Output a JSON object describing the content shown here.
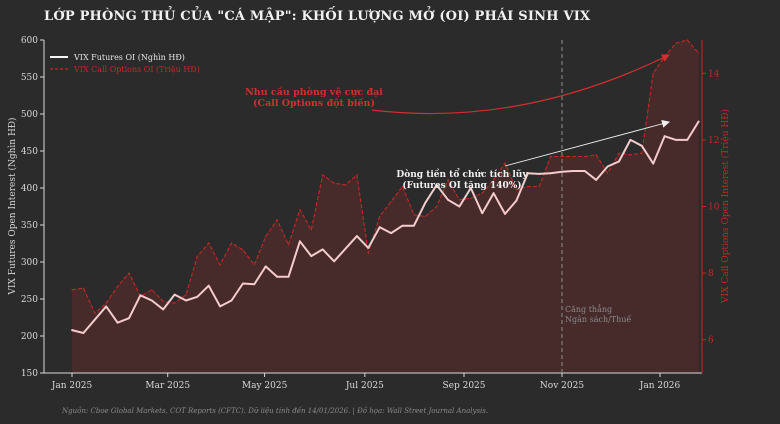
{
  "title": "LỚP PHÒNG THỦ CỦA \"CÁ MẬP\": KHỐI LƯỢNG MỞ (OI) PHÁI SINH VIX",
  "source": "Nguồn: Cboe Global Markets, COT Reports (CFTC). Dữ liệu tính đến 14/01/2026. | Đồ họa: Wall Street Journal Analysis.",
  "colors": {
    "background": "#2b2b2b",
    "futures": "#f4cccc",
    "options": "#c62828",
    "fill": "#4a2a2a",
    "axis": "#d9d9d9"
  },
  "chart_data": {
    "type": "line",
    "x_ticks": [
      "Jan 2025",
      "Mar 2025",
      "May 2025",
      "Jul 2025",
      "Sep 2025",
      "Nov 2025",
      "Jan 2026"
    ],
    "x_tick_weeks": [
      0,
      8.4,
      16.9,
      25.7,
      34.4,
      43.0,
      51.6
    ],
    "ylabel_left": "VIX Futures Open Interest (Nghìn HĐ)",
    "ylabel_right": "VIX Call Options Open Interest (Triệu HĐ)",
    "ylim_left": [
      150,
      600
    ],
    "ylim_right": [
      5.0,
      15.0
    ],
    "y_ticks_left": [
      150,
      200,
      250,
      300,
      350,
      400,
      450,
      500,
      550,
      600
    ],
    "y_ticks_right": [
      6,
      8,
      10,
      12,
      14
    ],
    "series": [
      {
        "name": "VIX Futures OI (Nghìn HĐ)",
        "axis": "left",
        "values": [
          208,
          204,
          222,
          240,
          218,
          224,
          255,
          248,
          236,
          256,
          248,
          253,
          268,
          240,
          248,
          271,
          270,
          294,
          280,
          280,
          328,
          308,
          317,
          301,
          318,
          335,
          319,
          347,
          339,
          349,
          349,
          380,
          404,
          384,
          375,
          400,
          366,
          393,
          365,
          383,
          420,
          419,
          420,
          422,
          423,
          423,
          411,
          429,
          436,
          465,
          457,
          433,
          470,
          465,
          465,
          490
        ]
      },
      {
        "name": "VIX Call Options OI (Triệu HĐ)",
        "axis": "right",
        "values": [
          7.5,
          7.55,
          6.8,
          7.1,
          7.6,
          8.0,
          7.3,
          7.5,
          7.15,
          7.1,
          7.35,
          8.5,
          8.9,
          8.25,
          8.9,
          8.7,
          8.25,
          9.1,
          9.6,
          8.85,
          9.9,
          9.3,
          10.95,
          10.7,
          10.65,
          10.95,
          8.6,
          9.7,
          10.15,
          10.6,
          9.75,
          9.7,
          10.0,
          10.8,
          10.2,
          10.25,
          10.4,
          10.8,
          11.3,
          10.5,
          10.6,
          10.6,
          11.5,
          11.5,
          11.5,
          11.5,
          11.55,
          11.0,
          11.6,
          11.55,
          11.6,
          14.0,
          14.5,
          14.9,
          15.0,
          14.6
        ]
      }
    ],
    "legend": [
      "VIX Futures OI (Nghìn HĐ)",
      "VIX Call Options OI (Triệu HĐ)"
    ],
    "legend_position": "top-left",
    "annotations": {
      "options": {
        "line1": "Nhu cầu phòng vệ cực đại",
        "line2": "(Call Options đột biến)"
      },
      "futures": {
        "line1": "Dòng tiền tổ chức tích lũy",
        "line2": "(Futures OI tăng 140%)"
      },
      "event": {
        "line1": "Căng thẳng",
        "line2": "Ngân sách/Thuế",
        "week": 43.0
      }
    }
  }
}
